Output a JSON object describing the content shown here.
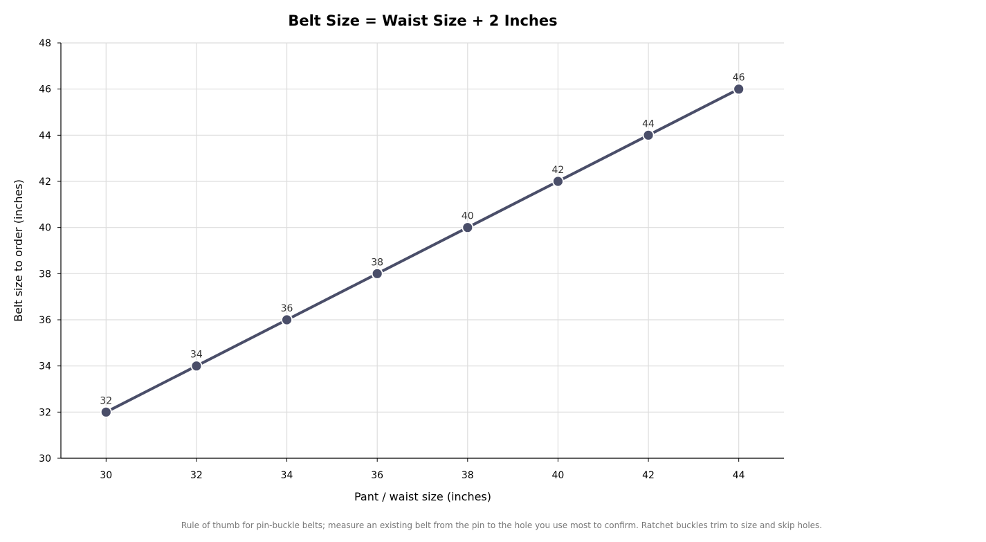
{
  "chart_data": {
    "type": "line",
    "title": "Belt Size = Waist Size + 2 Inches",
    "xlabel": "Pant / waist size (inches)",
    "ylabel": "Belt size to order (inches)",
    "xlim": [
      29,
      45
    ],
    "ylim": [
      30,
      48
    ],
    "x_ticks": [
      30,
      32,
      34,
      36,
      38,
      40,
      42,
      44
    ],
    "y_ticks": [
      30,
      32,
      34,
      36,
      38,
      40,
      42,
      44,
      46,
      48
    ],
    "grid": true,
    "legend": "none",
    "series": [
      {
        "x": [
          30,
          32,
          34,
          36,
          38,
          40,
          42,
          44
        ],
        "y": [
          32,
          34,
          36,
          38,
          40,
          42,
          44,
          46
        ],
        "color": "#4a4e69",
        "marker": "circle",
        "data_labels": [
          "32",
          "34",
          "36",
          "38",
          "40",
          "42",
          "44",
          "46"
        ]
      }
    ],
    "footnote": "Rule of thumb for pin-buckle belts; measure an existing belt from the pin to the hole you use most to confirm. Ratchet buckles trim to size and skip holes."
  }
}
